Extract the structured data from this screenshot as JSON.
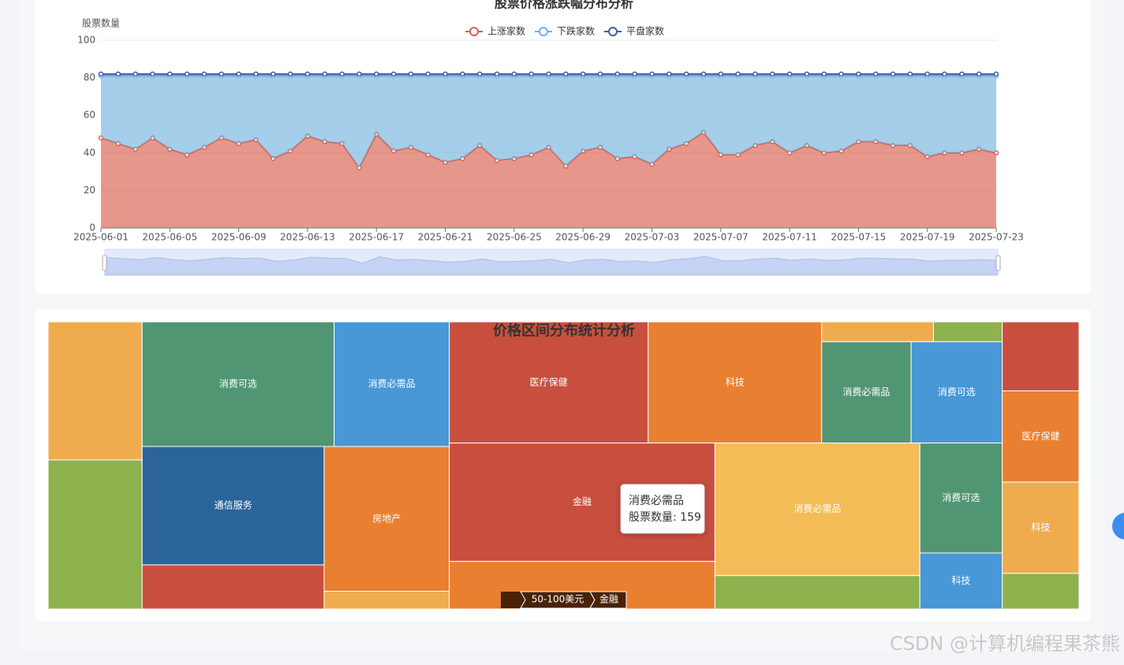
{
  "chart_data": [
    {
      "type": "line",
      "title": "股票价格涨跌幅分布分析",
      "y_label": "股票数量",
      "stacked": true,
      "area": true,
      "grid": true,
      "categories": [
        "2025-06-01",
        null,
        null,
        null,
        "2025-06-05",
        null,
        null,
        null,
        "2025-06-09",
        null,
        null,
        null,
        "2025-06-13",
        null,
        null,
        null,
        "2025-06-17",
        null,
        null,
        null,
        "2025-06-21",
        null,
        null,
        null,
        "2025-06-25",
        null,
        null,
        null,
        "2025-06-29",
        null,
        null,
        null,
        "2025-07-03",
        null,
        null,
        null,
        "2025-07-07",
        null,
        null,
        null,
        "2025-07-11",
        null,
        null,
        null,
        "2025-07-15",
        null,
        null,
        null,
        "2025-07-19",
        null,
        null,
        null,
        "2025-07-23"
      ],
      "ylim": [
        0,
        100
      ],
      "yticks": [
        0,
        20,
        40,
        60,
        80,
        100
      ],
      "series": [
        {
          "name": "上涨家数",
          "color": "#d9604f",
          "values": [
            48,
            45,
            42,
            48,
            42,
            39,
            43,
            48,
            45,
            47,
            37,
            41,
            49,
            46,
            45,
            32,
            50,
            41,
            43,
            39,
            35,
            37,
            44,
            36,
            37,
            39,
            43,
            33,
            41,
            43,
            37,
            38,
            34,
            42,
            45,
            51,
            39,
            39,
            44,
            46,
            40,
            44,
            40,
            41,
            46,
            46,
            44,
            44,
            38,
            40,
            40,
            42,
            40
          ]
        },
        {
          "name": "下跌家数",
          "color": "#73b3dd",
          "values": [
            33,
            36,
            39,
            33,
            39,
            42,
            38,
            33,
            36,
            34,
            44,
            40,
            32,
            35,
            36,
            49,
            31,
            40,
            38,
            42,
            46,
            44,
            37,
            45,
            44,
            42,
            38,
            48,
            40,
            38,
            44,
            43,
            47,
            39,
            36,
            30,
            42,
            42,
            37,
            35,
            41,
            37,
            41,
            40,
            35,
            35,
            37,
            37,
            43,
            41,
            41,
            39,
            41
          ]
        },
        {
          "name": "平盘家数",
          "color": "#3e5ba9",
          "values": [
            1,
            1,
            1,
            1,
            1,
            1,
            1,
            1,
            1,
            1,
            1,
            1,
            1,
            1,
            1,
            1,
            1,
            1,
            1,
            1,
            1,
            1,
            1,
            1,
            1,
            1,
            1,
            1,
            1,
            1,
            1,
            1,
            1,
            1,
            1,
            1,
            1,
            1,
            1,
            1,
            1,
            1,
            1,
            1,
            1,
            1,
            1,
            1,
            1,
            1,
            1,
            1,
            1
          ]
        }
      ]
    },
    {
      "type": "treemap",
      "title": "价格区间分布统计分析",
      "data": [
        {
          "children": [
            {
              "name": null,
              "value": 76,
              "color": "#efac4f"
            },
            {
              "name": null,
              "value": 82,
              "color": "#8db24e"
            }
          ]
        },
        {
          "children": [
            {
              "children": [
                {
                  "name": "消费可选",
                  "value": 140,
                  "color": "#519673"
                },
                {
                  "name": "消费必需品",
                  "value": 84,
                  "color": "#4897d6"
                }
              ]
            },
            {
              "children": [
                {
                  "children": [
                    {
                      "name": "通信服务",
                      "value": 126,
                      "color": "#2a6499"
                    },
                    {
                      "name": null,
                      "value": 47,
                      "color": "#c84f3d"
                    }
                  ]
                },
                {
                  "children": [
                    {
                      "name": "房地产",
                      "value": 106,
                      "color": "#e97f30"
                    },
                    {
                      "name": null,
                      "value": 13,
                      "color": "#efac4f"
                    }
                  ]
                }
              ]
            }
          ]
        },
        {
          "children": [
            {
              "children": [
                {
                  "name": "医疗保健",
                  "value": 141,
                  "color": "#c84f3d"
                },
                {
                  "name": "科技",
                  "value": 123,
                  "color": "#e97f30"
                },
                {
                  "children": [
                    {
                      "children": [
                        {
                          "name": null,
                          "value": 13,
                          "color": "#efac4f"
                        },
                        {
                          "name": null,
                          "value": 8,
                          "color": "#8db24e"
                        }
                      ]
                    },
                    {
                      "children": [
                        {
                          "name": "消费必需品",
                          "value": 53,
                          "color": "#519673"
                        },
                        {
                          "name": "消费可选",
                          "value": 54,
                          "color": "#4897d6"
                        }
                      ]
                    }
                  ]
                }
              ]
            },
            {
              "children": [
                {
                  "children": [
                    {
                      "name": "金融",
                      "value": 184,
                      "color": "#c84f3d"
                    },
                    {
                      "name": null,
                      "value": 74,
                      "color": "#e97f30"
                    }
                  ]
                },
                {
                  "children": [
                    {
                      "name": "消费必需品",
                      "value": 159,
                      "color": "#f4bc57"
                    },
                    {
                      "name": null,
                      "value": 40,
                      "color": "#8db24e"
                    }
                  ]
                },
                {
                  "children": [
                    {
                      "name": "消费可选",
                      "value": 53,
                      "color": "#519673"
                    },
                    {
                      "name": "科技",
                      "value": 27,
                      "color": "#4897d6"
                    }
                  ]
                }
              ]
            }
          ]
        },
        {
          "children": [
            {
              "name": null,
              "value": 31,
              "color": "#c84f3d"
            },
            {
              "name": "医疗保健",
              "value": 41,
              "color": "#e97f30"
            },
            {
              "name": "科技",
              "value": 41,
              "color": "#efac4f"
            },
            {
              "name": null,
              "value": 16,
              "color": "#8db24e"
            }
          ]
        }
      ]
    }
  ],
  "tooltip": {
    "title": "消费必需品",
    "text": "股票数量: 159"
  },
  "breadcrumb": [
    "50-100美元",
    "金融"
  ],
  "watermark": "CSDN @计算机编程果茶熊"
}
